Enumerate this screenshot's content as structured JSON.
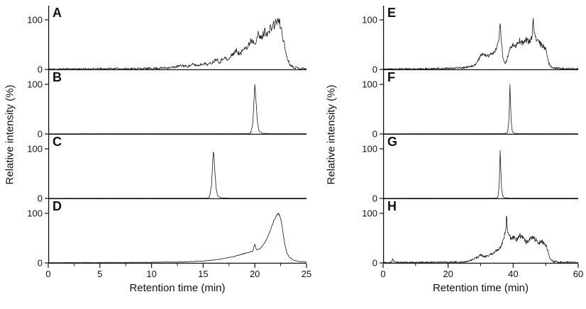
{
  "figure": {
    "background": "#ffffff",
    "line_color": "#1a1a1a",
    "axis_color": "#111111",
    "tick_font_px": 13,
    "columns": [
      {
        "id": "left",
        "ylabel": "Relative intensity (%)",
        "xlabel": "Retention time (min)",
        "x_range": [
          0,
          25
        ],
        "x_major_ticks": [
          0,
          5,
          10,
          15,
          20,
          25
        ],
        "x_minor_step": 2.5,
        "y_ticks": [
          0,
          100
        ],
        "panel_indices": [
          0,
          1,
          2,
          3
        ]
      },
      {
        "id": "right",
        "ylabel": "Relative intensity (%)",
        "xlabel": "Retention time (min)",
        "x_range": [
          0,
          60
        ],
        "x_major_ticks": [
          0,
          20,
          40,
          60
        ],
        "x_minor_step": 10,
        "y_ticks": [
          0,
          100
        ],
        "panel_indices": [
          4,
          5,
          6,
          7
        ]
      }
    ]
  },
  "chart_data": [
    {
      "panel": "A",
      "type": "line",
      "xlabel": "Retention time (min)",
      "ylabel": "Relative intensity (%)",
      "x_range": [
        0,
        25
      ],
      "ylim": [
        0,
        100
      ],
      "noise": 11,
      "anchors": [
        [
          0,
          0.5
        ],
        [
          2,
          1
        ],
        [
          4,
          1
        ],
        [
          6,
          1.5
        ],
        [
          8,
          1.5
        ],
        [
          10,
          2
        ],
        [
          11,
          3
        ],
        [
          12,
          4
        ],
        [
          12.5,
          6
        ],
        [
          13,
          8
        ],
        [
          13.5,
          6
        ],
        [
          14,
          10
        ],
        [
          14.5,
          8
        ],
        [
          15,
          12
        ],
        [
          15.5,
          10
        ],
        [
          16,
          16
        ],
        [
          16.3,
          22
        ],
        [
          16.6,
          14
        ],
        [
          17,
          25
        ],
        [
          17.4,
          18
        ],
        [
          17.8,
          30
        ],
        [
          18.2,
          38
        ],
        [
          18.6,
          30
        ],
        [
          19,
          48
        ],
        [
          19.3,
          42
        ],
        [
          19.6,
          60
        ],
        [
          20,
          55
        ],
        [
          20.3,
          70
        ],
        [
          20.6,
          62
        ],
        [
          21,
          78
        ],
        [
          21.3,
          72
        ],
        [
          21.6,
          85
        ],
        [
          22,
          92
        ],
        [
          22.2,
          100
        ],
        [
          22.5,
          88
        ],
        [
          22.8,
          55
        ],
        [
          23.1,
          25
        ],
        [
          23.4,
          10
        ],
        [
          23.8,
          4
        ],
        [
          24.5,
          2
        ],
        [
          25,
          1.5
        ]
      ]
    },
    {
      "panel": "B",
      "type": "line",
      "xlabel": "Retention time (min)",
      "ylabel": "Relative intensity (%)",
      "x_range": [
        0,
        25
      ],
      "ylim": [
        0,
        100
      ],
      "noise": 0.35,
      "anchors": [
        [
          0,
          0.3
        ],
        [
          5,
          0.4
        ],
        [
          10,
          0.4
        ],
        [
          15,
          0.5
        ],
        [
          18,
          0.5
        ],
        [
          19.3,
          0.6
        ],
        [
          19.6,
          2
        ],
        [
          19.8,
          20
        ],
        [
          19.9,
          60
        ],
        [
          20,
          100
        ],
        [
          20.1,
          70
        ],
        [
          20.25,
          25
        ],
        [
          20.4,
          6
        ],
        [
          20.7,
          1.5
        ],
        [
          21.5,
          0.6
        ],
        [
          23,
          0.5
        ],
        [
          25,
          0.4
        ]
      ]
    },
    {
      "panel": "C",
      "type": "line",
      "xlabel": "Retention time (min)",
      "ylabel": "Relative intensity (%)",
      "x_range": [
        0,
        25
      ],
      "ylim": [
        0,
        100
      ],
      "noise": 0.35,
      "anchors": [
        [
          0,
          0.3
        ],
        [
          5,
          0.4
        ],
        [
          10,
          0.4
        ],
        [
          14,
          0.5
        ],
        [
          15.3,
          0.6
        ],
        [
          15.6,
          2
        ],
        [
          15.8,
          25
        ],
        [
          15.9,
          65
        ],
        [
          16,
          100
        ],
        [
          16.1,
          65
        ],
        [
          16.25,
          20
        ],
        [
          16.4,
          5
        ],
        [
          16.7,
          1.5
        ],
        [
          17.5,
          0.6
        ],
        [
          20,
          0.5
        ],
        [
          25,
          0.4
        ]
      ]
    },
    {
      "panel": "D",
      "type": "line",
      "xlabel": "Retention time (min)",
      "ylabel": "Relative intensity (%)",
      "x_range": [
        0,
        25
      ],
      "ylim": [
        0,
        100
      ],
      "noise": 2.2,
      "anchors": [
        [
          0,
          0.5
        ],
        [
          4,
          0.8
        ],
        [
          8,
          1
        ],
        [
          11,
          1.5
        ],
        [
          13,
          2
        ],
        [
          14,
          3
        ],
        [
          15,
          4
        ],
        [
          16,
          6
        ],
        [
          17,
          9
        ],
        [
          18,
          13
        ],
        [
          18.5,
          16
        ],
        [
          19,
          19
        ],
        [
          19.5,
          22
        ],
        [
          19.8,
          24
        ],
        [
          20,
          38
        ],
        [
          20.15,
          26
        ],
        [
          20.5,
          28
        ],
        [
          21,
          42
        ],
        [
          21.3,
          55
        ],
        [
          21.6,
          72
        ],
        [
          21.9,
          88
        ],
        [
          22.1,
          97
        ],
        [
          22.3,
          100
        ],
        [
          22.5,
          90
        ],
        [
          22.7,
          65
        ],
        [
          22.9,
          38
        ],
        [
          23.1,
          20
        ],
        [
          23.4,
          10
        ],
        [
          23.8,
          5
        ],
        [
          24.3,
          3
        ],
        [
          25,
          2
        ]
      ]
    },
    {
      "panel": "E",
      "type": "line",
      "xlabel": "Retention time (min)",
      "ylabel": "Relative intensity (%)",
      "x_range": [
        0,
        60
      ],
      "ylim": [
        0,
        100
      ],
      "noise": 9,
      "anchors": [
        [
          0,
          0.5
        ],
        [
          5,
          1
        ],
        [
          10,
          1
        ],
        [
          15,
          1.5
        ],
        [
          20,
          2
        ],
        [
          24,
          3
        ],
        [
          26,
          5
        ],
        [
          28,
          8
        ],
        [
          29,
          15
        ],
        [
          30,
          28
        ],
        [
          31,
          32
        ],
        [
          32,
          26
        ],
        [
          33,
          30
        ],
        [
          34,
          35
        ],
        [
          35,
          42
        ],
        [
          35.7,
          60
        ],
        [
          36,
          95
        ],
        [
          36.3,
          60
        ],
        [
          36.8,
          28
        ],
        [
          37.2,
          15
        ],
        [
          37.6,
          12
        ],
        [
          38,
          18
        ],
        [
          38.5,
          30
        ],
        [
          39,
          42
        ],
        [
          40,
          52
        ],
        [
          41,
          48
        ],
        [
          42,
          58
        ],
        [
          43,
          52
        ],
        [
          44,
          60
        ],
        [
          45,
          55
        ],
        [
          45.8,
          68
        ],
        [
          46.2,
          100
        ],
        [
          46.5,
          75
        ],
        [
          47,
          62
        ],
        [
          47.5,
          58
        ],
        [
          48,
          55
        ],
        [
          48.6,
          50
        ],
        [
          49.2,
          48
        ],
        [
          50,
          42
        ],
        [
          50.6,
          25
        ],
        [
          51,
          12
        ],
        [
          51.6,
          6
        ],
        [
          52.5,
          3
        ],
        [
          55,
          1.5
        ],
        [
          60,
          1
        ]
      ]
    },
    {
      "panel": "F",
      "type": "line",
      "xlabel": "Retention time (min)",
      "ylabel": "Relative intensity (%)",
      "x_range": [
        0,
        60
      ],
      "ylim": [
        0,
        100
      ],
      "noise": 0.35,
      "anchors": [
        [
          0,
          0.3
        ],
        [
          10,
          0.4
        ],
        [
          20,
          0.4
        ],
        [
          30,
          0.5
        ],
        [
          36,
          0.6
        ],
        [
          37.5,
          0.8
        ],
        [
          38.3,
          3
        ],
        [
          38.7,
          30
        ],
        [
          38.9,
          75
        ],
        [
          39,
          100
        ],
        [
          39.15,
          70
        ],
        [
          39.4,
          25
        ],
        [
          39.7,
          6
        ],
        [
          40.2,
          1.5
        ],
        [
          42,
          0.6
        ],
        [
          50,
          0.5
        ],
        [
          60,
          0.4
        ]
      ]
    },
    {
      "panel": "G",
      "type": "line",
      "xlabel": "Retention time (min)",
      "ylabel": "Relative intensity (%)",
      "x_range": [
        0,
        60
      ],
      "ylim": [
        0,
        100
      ],
      "noise": 0.35,
      "anchors": [
        [
          0,
          0.3
        ],
        [
          10,
          0.4
        ],
        [
          20,
          0.4
        ],
        [
          30,
          0.5
        ],
        [
          34.5,
          0.7
        ],
        [
          35.3,
          2
        ],
        [
          35.7,
          25
        ],
        [
          35.9,
          70
        ],
        [
          36,
          97
        ],
        [
          36.15,
          68
        ],
        [
          36.4,
          22
        ],
        [
          36.8,
          5
        ],
        [
          37.3,
          1.5
        ],
        [
          39,
          0.6
        ],
        [
          50,
          0.5
        ],
        [
          60,
          0.4
        ]
      ]
    },
    {
      "panel": "H",
      "type": "line",
      "xlabel": "Retention time (min)",
      "ylabel": "Relative intensity (%)",
      "x_range": [
        0,
        60
      ],
      "ylim": [
        0,
        100
      ],
      "noise": 8,
      "anchors": [
        [
          0,
          0.5
        ],
        [
          2.5,
          1
        ],
        [
          3,
          7
        ],
        [
          3.4,
          1
        ],
        [
          8,
          1
        ],
        [
          14,
          1.2
        ],
        [
          20,
          1.5
        ],
        [
          24,
          2
        ],
        [
          26,
          3
        ],
        [
          27,
          5
        ],
        [
          28,
          8
        ],
        [
          29,
          12
        ],
        [
          30,
          16
        ],
        [
          31,
          12
        ],
        [
          32,
          14
        ],
        [
          33,
          17
        ],
        [
          34,
          21
        ],
        [
          35,
          26
        ],
        [
          36,
          30
        ],
        [
          37,
          45
        ],
        [
          37.8,
          70
        ],
        [
          38,
          100
        ],
        [
          38.3,
          62
        ],
        [
          38.7,
          55
        ],
        [
          39.2,
          50
        ],
        [
          40,
          52
        ],
        [
          41,
          46
        ],
        [
          42,
          56
        ],
        [
          43,
          50
        ],
        [
          44,
          42
        ],
        [
          45,
          46
        ],
        [
          46,
          52
        ],
        [
          47,
          46
        ],
        [
          48,
          40
        ],
        [
          48.8,
          44
        ],
        [
          49.5,
          38
        ],
        [
          50.3,
          32
        ],
        [
          51,
          16
        ],
        [
          51.6,
          7
        ],
        [
          52.5,
          3
        ],
        [
          55,
          1.5
        ],
        [
          60,
          1
        ]
      ]
    }
  ]
}
